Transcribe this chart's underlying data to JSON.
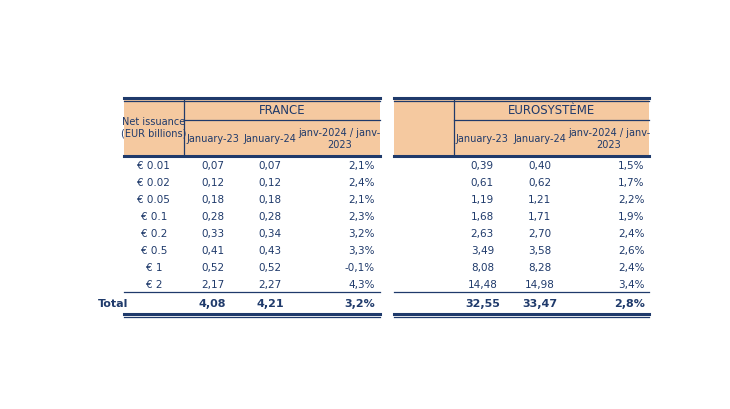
{
  "header_bg": "#F5C9A0",
  "body_bg": "#FFFFFF",
  "border_color": "#1F3A6B",
  "text_color": "#1F3A6B",
  "label_col": "Net issuance\n(EUR billions)",
  "france_header": "FRANCE",
  "euro_header": "EUROSYSTÈME",
  "col_headers": [
    "January-23",
    "January-24",
    "janv-2024 / janv-\n2023"
  ],
  "denominations": [
    "€ 0.01",
    "€ 0.02",
    "€ 0.05",
    "€ 0.1",
    "€ 0.2",
    "€ 0.5",
    "€ 1",
    "€ 2"
  ],
  "france_jan23": [
    "0,07",
    "0,12",
    "0,18",
    "0,28",
    "0,33",
    "0,41",
    "0,52",
    "2,17"
  ],
  "france_jan24": [
    "0,07",
    "0,12",
    "0,18",
    "0,28",
    "0,34",
    "0,43",
    "0,52",
    "2,27"
  ],
  "france_pct": [
    "2,1%",
    "2,4%",
    "2,1%",
    "2,3%",
    "3,2%",
    "3,3%",
    "-0,1%",
    "4,3%"
  ],
  "euro_jan23": [
    "0,39",
    "0,61",
    "1,19",
    "1,68",
    "2,63",
    "3,49",
    "8,08",
    "14,48"
  ],
  "euro_jan24": [
    "0,40",
    "0,62",
    "1,21",
    "1,71",
    "2,70",
    "3,58",
    "8,28",
    "14,98"
  ],
  "euro_pct": [
    "1,5%",
    "1,7%",
    "2,2%",
    "1,9%",
    "2,4%",
    "2,6%",
    "2,4%",
    "3,4%"
  ],
  "total_label": "Total",
  "france_total_jan23": "4,08",
  "france_total_jan24": "4,21",
  "france_total_pct": "3,2%",
  "euro_total_jan23": "32,55",
  "euro_total_jan24": "33,47",
  "euro_total_pct": "2,8%",
  "fig_width": 7.3,
  "fig_height": 4.1,
  "dpi": 100
}
